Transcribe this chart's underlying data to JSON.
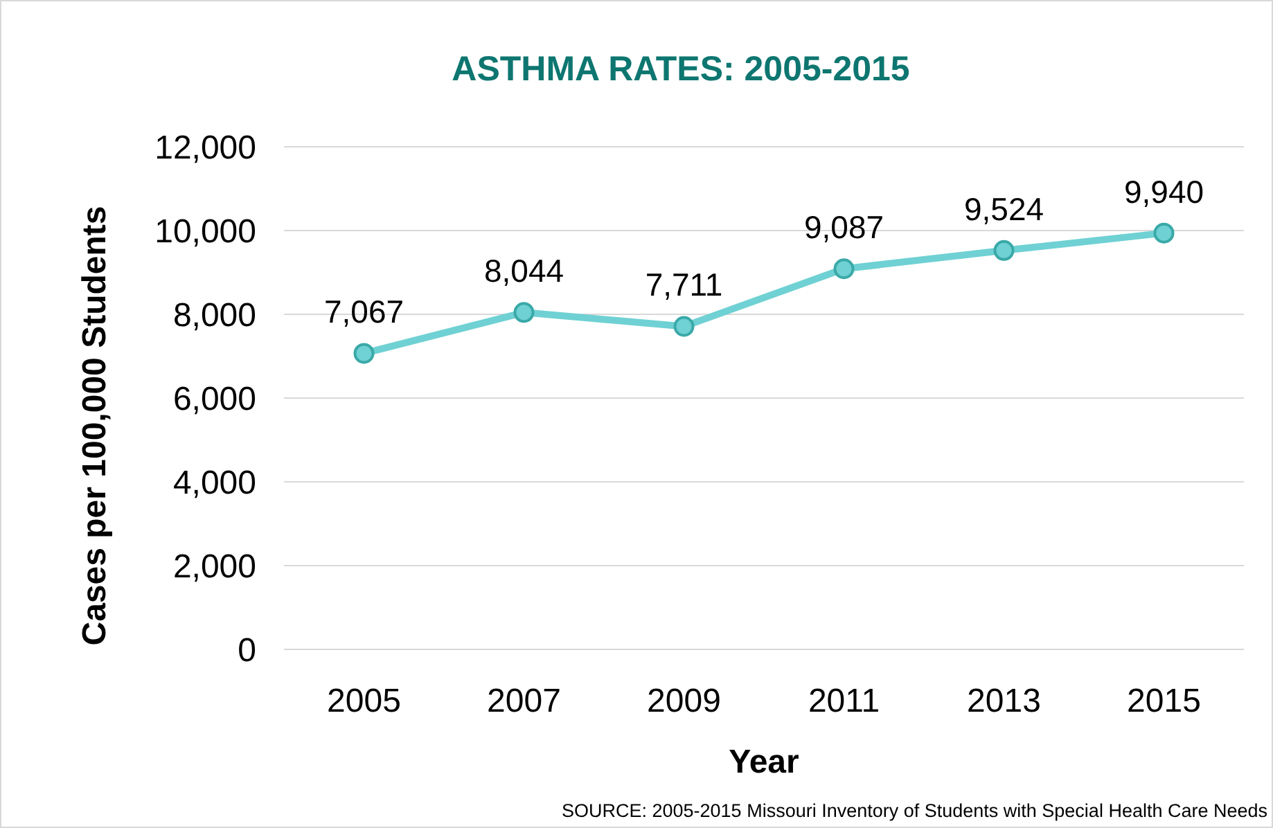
{
  "chart_data": {
    "type": "line",
    "title": "ASTHMA RATES: 2005-2015",
    "xlabel": "Year",
    "ylabel": "Cases per 100,000 Students",
    "categories": [
      "2005",
      "2007",
      "2009",
      "2011",
      "2013",
      "2015"
    ],
    "series": [
      {
        "color": "#6fd1d3",
        "values": [
          7067,
          8044,
          7711,
          9087,
          9524,
          9940
        ],
        "value_labels": [
          "7,067",
          "8,044",
          "7,711",
          "9,087",
          "9,524",
          "9,940"
        ]
      }
    ],
    "ylim": [
      0,
      12000
    ],
    "yticks": [
      {
        "value": 0,
        "label": "0"
      },
      {
        "value": 2000,
        "label": "2,000"
      },
      {
        "value": 4000,
        "label": "4,000"
      },
      {
        "value": 6000,
        "label": "6,000"
      },
      {
        "value": 8000,
        "label": "8,000"
      },
      {
        "value": 10000,
        "label": "10,000"
      },
      {
        "value": 12000,
        "label": "12,000"
      }
    ],
    "grid": "y",
    "marker": "circle",
    "annotations": [
      "SOURCE: 2005-2015 Missouri Inventory of Students with Special Health Care Needs"
    ]
  }
}
